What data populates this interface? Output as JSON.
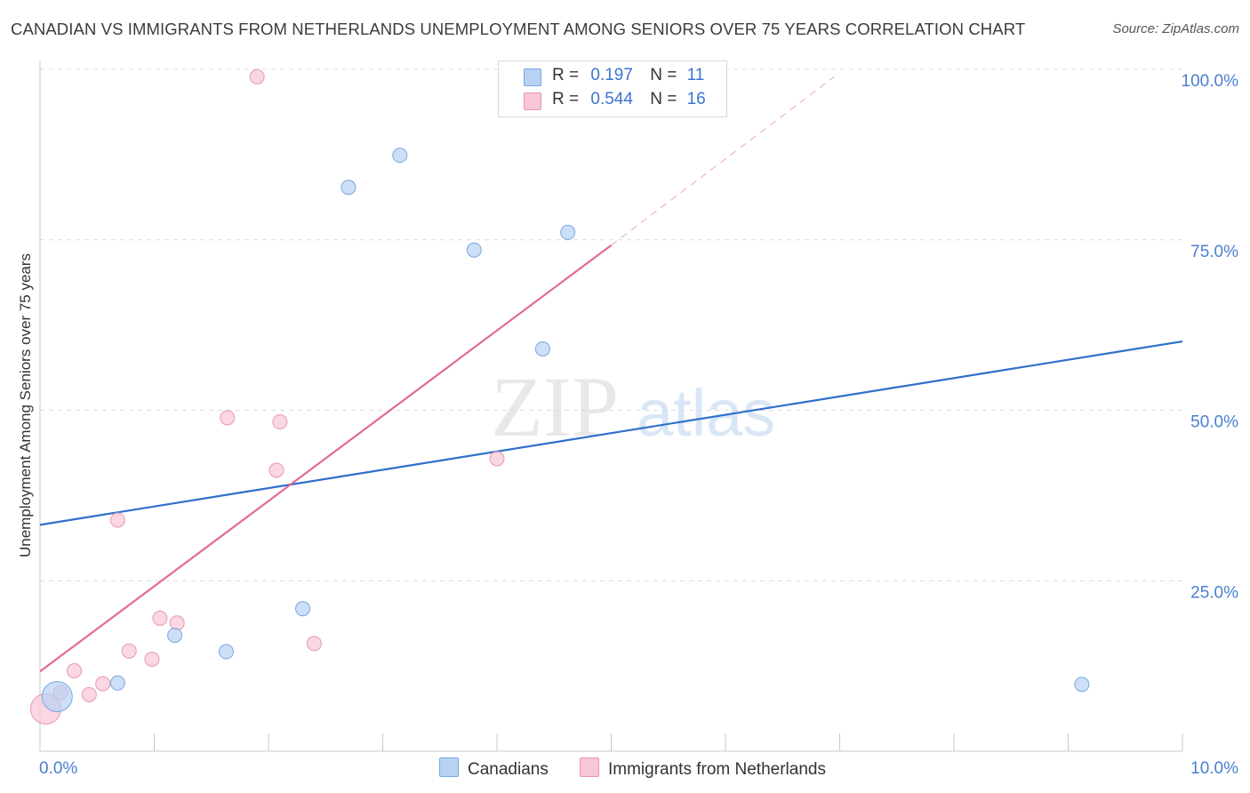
{
  "title": "CANADIAN VS IMMIGRANTS FROM NETHERLANDS UNEMPLOYMENT AMONG SENIORS OVER 75 YEARS CORRELATION CHART",
  "source": "Source: ZipAtlas.com",
  "watermark": {
    "zip": "ZIP",
    "atlas": "atlas"
  },
  "legend": {
    "series1": {
      "r_label": "R =",
      "r_value": "0.197",
      "n_label": "N =",
      "n_value": "11"
    },
    "series2": {
      "r_label": "R =",
      "r_value": "0.544",
      "n_label": "N =",
      "n_value": "16"
    }
  },
  "bottom_legend": {
    "series1": "Canadians",
    "series2": "Immigrants from Netherlands"
  },
  "colors": {
    "canadians_fill": "#b8d2f3",
    "canadians_stroke": "#7aa6e0",
    "canadians_line": "#2f6fcc",
    "netherlands_fill": "#f8c6d4",
    "netherlands_stroke": "#e997b0",
    "netherlands_line": "#e06b93",
    "grid": "#dcdcdc",
    "axis_text": "#4a7fd0"
  },
  "chart_data": {
    "type": "scatter",
    "title": "CANADIAN VS IMMIGRANTS FROM NETHERLANDS UNEMPLOYMENT AMONG SENIORS OVER 75 YEARS CORRELATION CHART",
    "xlabel": "",
    "ylabel": "Unemployment Among Seniors over 75 years",
    "xlim": [
      0,
      10
    ],
    "ylim": [
      0,
      100
    ],
    "x_tick_labels": [
      "0.0%",
      "10.0%"
    ],
    "y_ticks": [
      25,
      50,
      75,
      100
    ],
    "y_tick_labels": [
      "25.0%",
      "50.0%",
      "75.0%",
      "100.0%"
    ],
    "grid": true,
    "series": [
      {
        "name": "Canadians",
        "points": [
          {
            "x": 0.15,
            "y": 8.0,
            "size": "large"
          },
          {
            "x": 0.68,
            "y": 10.0
          },
          {
            "x": 1.18,
            "y": 17.0
          },
          {
            "x": 1.63,
            "y": 14.6
          },
          {
            "x": 2.3,
            "y": 20.9
          },
          {
            "x": 2.7,
            "y": 82.7
          },
          {
            "x": 3.15,
            "y": 87.4
          },
          {
            "x": 3.8,
            "y": 73.5
          },
          {
            "x": 4.4,
            "y": 59.0
          },
          {
            "x": 4.62,
            "y": 76.1
          },
          {
            "x": 9.12,
            "y": 9.8
          }
        ],
        "trend": {
          "x0": 0,
          "y0": 33.2,
          "x1": 10,
          "y1": 60.1
        }
      },
      {
        "name": "Immigrants from Netherlands",
        "points": [
          {
            "x": 0.05,
            "y": 6.2,
            "size": "large"
          },
          {
            "x": 0.18,
            "y": 8.6
          },
          {
            "x": 0.3,
            "y": 11.8
          },
          {
            "x": 0.43,
            "y": 8.3
          },
          {
            "x": 0.55,
            "y": 9.9
          },
          {
            "x": 0.68,
            "y": 33.9
          },
          {
            "x": 0.78,
            "y": 14.7
          },
          {
            "x": 0.98,
            "y": 13.5
          },
          {
            "x": 1.05,
            "y": 19.5
          },
          {
            "x": 1.2,
            "y": 18.8
          },
          {
            "x": 1.64,
            "y": 48.9
          },
          {
            "x": 1.9,
            "y": 98.9
          },
          {
            "x": 2.07,
            "y": 41.2
          },
          {
            "x": 2.1,
            "y": 48.3
          },
          {
            "x": 2.4,
            "y": 15.8
          },
          {
            "x": 4.0,
            "y": 42.9
          }
        ],
        "trend": {
          "x0": 0,
          "y0": 11.7,
          "x1": 5.0,
          "y1": 74.2
        },
        "trend_extension": {
          "x0": 5.0,
          "y0": 74.2,
          "x1": 6.95,
          "y1": 98.9
        }
      }
    ]
  }
}
